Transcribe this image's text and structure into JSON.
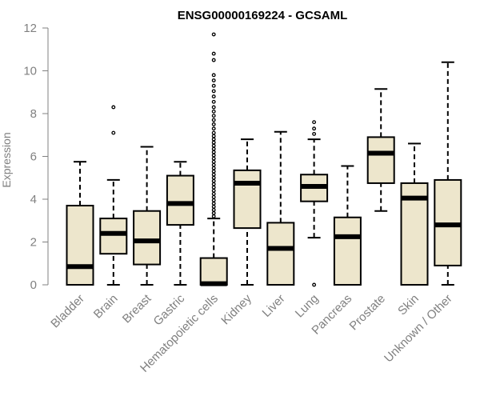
{
  "chart_data": {
    "type": "box",
    "title": "ENSG00000169224 - GCSAML",
    "ylabel": "Expression",
    "xlabel": "",
    "ylim": [
      0,
      12
    ],
    "yticks": [
      0,
      2,
      4,
      6,
      8,
      10,
      12
    ],
    "box_fill": "#ede6cc",
    "categories": [
      "Bladder",
      "Brain",
      "Breast",
      "Gastric",
      "Hematopoietic cells",
      "Kidney",
      "Liver",
      "Lung",
      "Pancreas",
      "Prostate",
      "Skin",
      "Unknown / Other"
    ],
    "boxes": [
      {
        "min": 0,
        "q1": 0,
        "median": 0.85,
        "q3": 3.7,
        "max": 5.75,
        "outliers": []
      },
      {
        "min": 0,
        "q1": 1.45,
        "median": 2.4,
        "q3": 3.1,
        "max": 4.9,
        "outliers": [
          7.1,
          8.3
        ]
      },
      {
        "min": 0,
        "q1": 0.95,
        "median": 2.05,
        "q3": 3.45,
        "max": 6.45,
        "outliers": []
      },
      {
        "min": 0,
        "q1": 2.8,
        "median": 3.8,
        "q3": 5.1,
        "max": 5.75,
        "outliers": []
      },
      {
        "min": 0,
        "q1": 0,
        "median": 0.05,
        "q3": 1.25,
        "max": 3.1,
        "outliers": [
          3.2,
          3.35,
          3.5,
          3.65,
          3.8,
          3.95,
          4.1,
          4.25,
          4.4,
          4.55,
          4.7,
          4.85,
          5.0,
          5.15,
          5.3,
          5.45,
          5.6,
          5.75,
          5.9,
          6.05,
          6.2,
          6.35,
          6.5,
          6.65,
          6.8,
          6.95,
          7.1,
          7.3,
          7.5,
          7.7,
          7.9,
          8.1,
          8.3,
          8.55,
          8.8,
          9.05,
          9.3,
          9.55,
          9.8,
          10.5,
          10.8,
          11.7
        ]
      },
      {
        "min": 0,
        "q1": 2.65,
        "median": 4.75,
        "q3": 5.35,
        "max": 6.8,
        "outliers": []
      },
      {
        "min": 0,
        "q1": 0,
        "median": 1.7,
        "q3": 2.9,
        "max": 7.15,
        "outliers": []
      },
      {
        "min": 2.2,
        "q1": 3.9,
        "median": 4.6,
        "q3": 5.15,
        "max": 6.8,
        "outliers": [
          0,
          7.05,
          7.3,
          7.6
        ]
      },
      {
        "min": 0,
        "q1": 0,
        "median": 2.25,
        "q3": 3.15,
        "max": 5.55,
        "outliers": []
      },
      {
        "min": 3.45,
        "q1": 4.75,
        "median": 6.15,
        "q3": 6.9,
        "max": 9.15,
        "outliers": []
      },
      {
        "min": 0,
        "q1": 0,
        "median": 4.05,
        "q3": 4.75,
        "max": 6.6,
        "outliers": []
      },
      {
        "min": 0,
        "q1": 0.9,
        "median": 2.8,
        "q3": 4.9,
        "max": 10.4,
        "outliers": []
      }
    ]
  }
}
